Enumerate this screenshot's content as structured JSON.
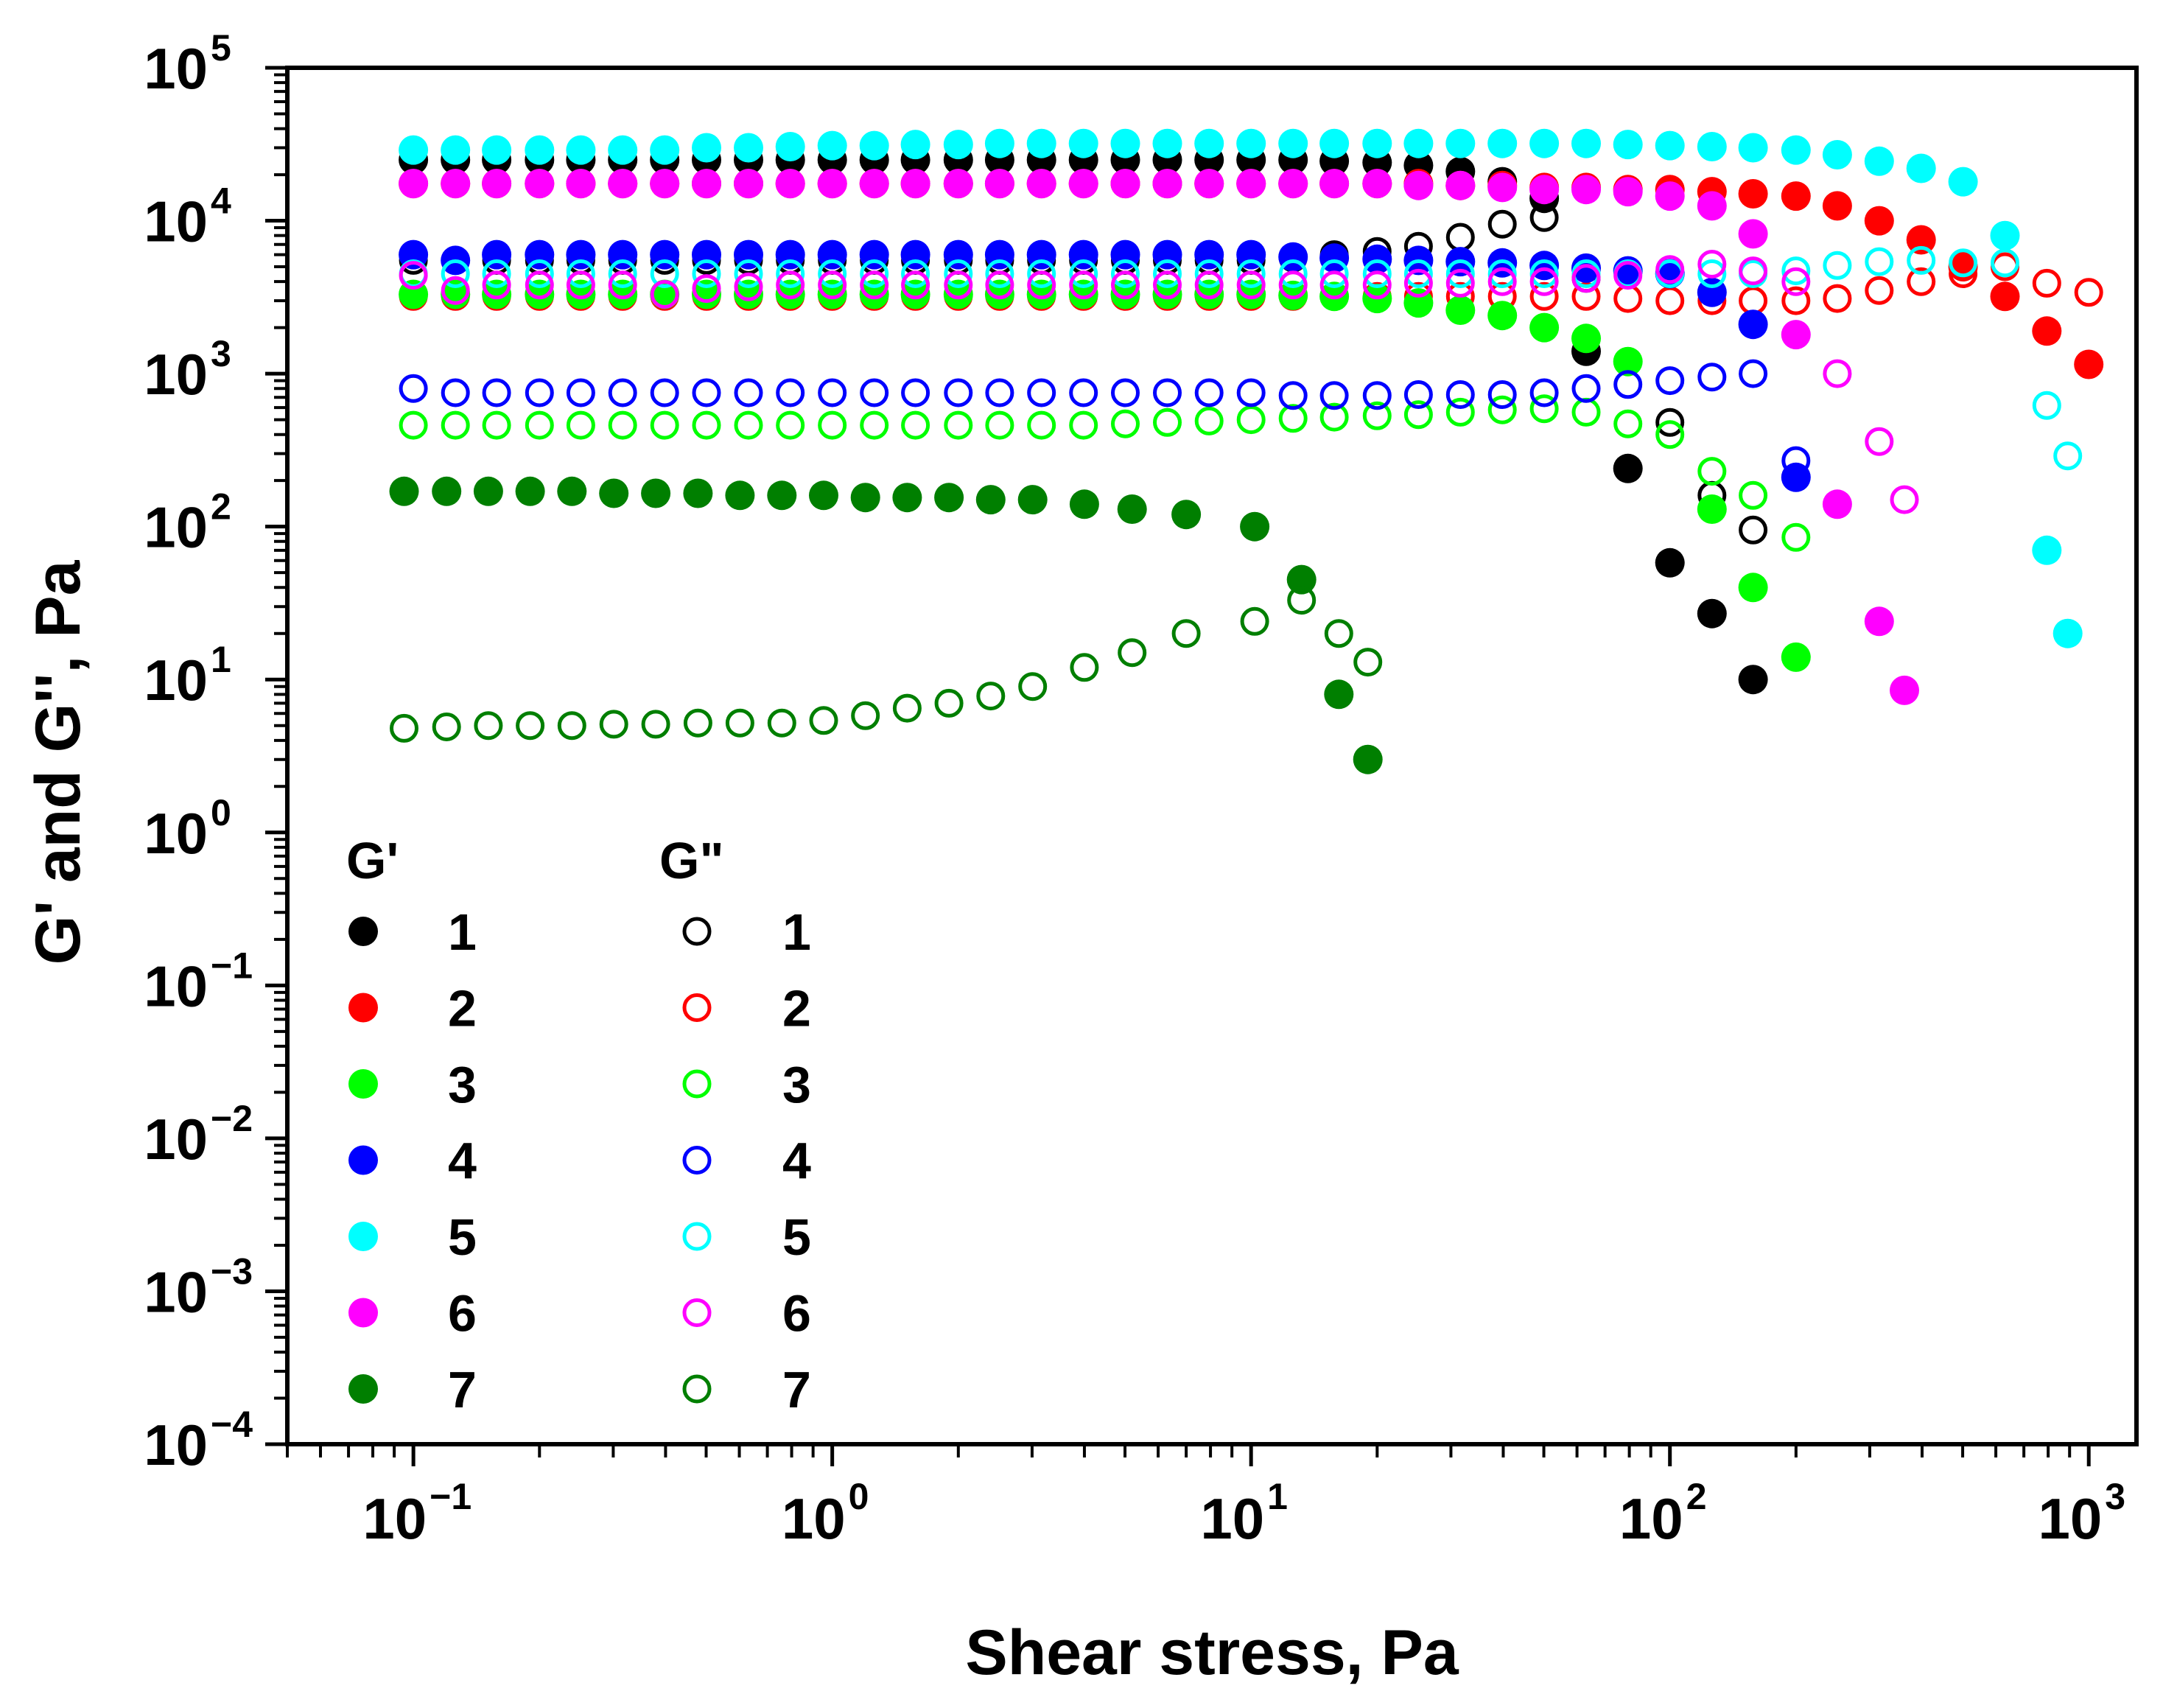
{
  "chart_data": {
    "type": "scatter",
    "title": "",
    "xlabel": "Shear stress, Pa",
    "ylabel": "G' and G'', Pa",
    "xscale": "log",
    "yscale": "log",
    "xlim": [
      0.05,
      1300
    ],
    "ylim": [
      0.0001,
      100000
    ],
    "x_ticks": [
      {
        "base": "10",
        "exp": "−1"
      },
      {
        "base": "10",
        "exp": "0"
      },
      {
        "base": "10",
        "exp": "1"
      },
      {
        "base": "10",
        "exp": "2"
      },
      {
        "base": "10",
        "exp": "3"
      }
    ],
    "y_ticks": [
      {
        "base": "10",
        "exp": "5"
      },
      {
        "base": "10",
        "exp": "4"
      },
      {
        "base": "10",
        "exp": "3"
      },
      {
        "base": "10",
        "exp": "2"
      },
      {
        "base": "10",
        "exp": "1"
      },
      {
        "base": "10",
        "exp": "0"
      },
      {
        "base": "10",
        "exp": "−1"
      },
      {
        "base": "10",
        "exp": "−2"
      },
      {
        "base": "10",
        "exp": "−3"
      },
      {
        "base": "10",
        "exp": "−4"
      }
    ],
    "legend": {
      "placement": "lower-left",
      "g_prime_title": "G'",
      "g_double_prime_title": "G\"",
      "labels": [
        "1",
        "2",
        "3",
        "4",
        "5",
        "6",
        "7"
      ]
    },
    "series": [
      {
        "name": "G' 1",
        "label": "1",
        "modulus": "G'",
        "color": "#000000",
        "filled": true,
        "x": [
          0.1,
          0.126,
          0.158,
          0.2,
          0.251,
          0.316,
          0.398,
          0.501,
          0.631,
          0.794,
          1,
          1.26,
          1.58,
          2,
          2.51,
          3.16,
          3.98,
          5.01,
          6.31,
          7.94,
          10,
          12.6,
          15.8,
          20,
          25.1,
          31.6,
          39.8,
          50.1,
          63.1,
          79.4,
          100,
          126,
          158
        ],
        "y": [
          25000,
          25000,
          25000,
          25000,
          25000,
          25000,
          25000,
          25000,
          25000,
          25000,
          25000,
          25000,
          25000,
          25000,
          25000,
          25000,
          25000,
          25000,
          25000,
          25000,
          25000,
          25000,
          24500,
          24000,
          23000,
          21000,
          18000,
          14000,
          1400,
          240,
          58,
          27,
          10
        ]
      },
      {
        "name": "G'' 1",
        "label": "1",
        "modulus": "G''",
        "color": "#000000",
        "filled": false,
        "x": [
          0.1,
          0.126,
          0.158,
          0.2,
          0.251,
          0.316,
          0.398,
          0.501,
          0.631,
          0.794,
          1,
          1.26,
          1.58,
          2,
          2.51,
          3.16,
          3.98,
          5.01,
          6.31,
          7.94,
          10,
          12.6,
          15.8,
          20,
          25.1,
          31.6,
          39.8,
          50.1,
          63.1,
          79.4,
          100,
          126,
          158
        ],
        "y": [
          5500,
          5500,
          5500,
          5500,
          5500,
          5500,
          5500,
          5500,
          5500,
          5500,
          5500,
          5500,
          5500,
          5500,
          5500,
          5500,
          5500,
          5500,
          5500,
          5500,
          5500,
          5700,
          6000,
          6300,
          6800,
          7800,
          9500,
          10500,
          4200,
          1200,
          480,
          160,
          95
        ]
      },
      {
        "name": "G' 2",
        "label": "2",
        "modulus": "G'",
        "color": "#ff0000",
        "filled": true,
        "x": [
          0.1,
          0.126,
          0.158,
          0.2,
          0.251,
          0.316,
          0.398,
          0.501,
          0.631,
          0.794,
          1,
          1.26,
          1.58,
          2,
          2.51,
          3.16,
          3.98,
          5.01,
          6.31,
          7.94,
          10,
          12.6,
          15.8,
          20,
          25.1,
          31.6,
          39.8,
          50.1,
          63.1,
          79.4,
          100,
          126,
          158,
          200,
          251,
          316,
          398,
          501,
          631,
          794,
          1000
        ],
        "y": [
          17500,
          17500,
          17500,
          17500,
          17500,
          17500,
          17500,
          17500,
          17500,
          17500,
          17500,
          17500,
          17500,
          17500,
          17500,
          17500,
          17500,
          17500,
          17500,
          17500,
          17500,
          17500,
          17500,
          17500,
          17500,
          17000,
          17000,
          16500,
          16500,
          16000,
          16000,
          15500,
          15000,
          14500,
          12500,
          10000,
          7500,
          5000,
          3200,
          1900,
          1150
        ]
      },
      {
        "name": "G'' 2",
        "label": "2",
        "modulus": "G''",
        "color": "#ff0000",
        "filled": false,
        "x": [
          0.1,
          0.126,
          0.158,
          0.2,
          0.251,
          0.316,
          0.398,
          0.501,
          0.631,
          0.794,
          1,
          1.26,
          1.58,
          2,
          2.51,
          3.16,
          3.98,
          5.01,
          6.31,
          7.94,
          10,
          12.6,
          15.8,
          20,
          25.1,
          31.6,
          39.8,
          50.1,
          63.1,
          79.4,
          100,
          126,
          158,
          200,
          251,
          316,
          398,
          501,
          631,
          794,
          1000
        ],
        "y": [
          3200,
          3200,
          3200,
          3200,
          3200,
          3200,
          3200,
          3200,
          3200,
          3200,
          3200,
          3200,
          3200,
          3200,
          3200,
          3200,
          3200,
          3200,
          3200,
          3200,
          3200,
          3200,
          3200,
          3200,
          3200,
          3200,
          3200,
          3200,
          3200,
          3100,
          3000,
          3000,
          3000,
          3000,
          3100,
          3500,
          4000,
          4500,
          5000,
          3900,
          3400
        ]
      },
      {
        "name": "G' 3",
        "label": "3",
        "modulus": "G'",
        "color": "#00ff00",
        "filled": true,
        "x": [
          0.1,
          0.126,
          0.158,
          0.2,
          0.251,
          0.316,
          0.398,
          0.501,
          0.631,
          0.794,
          1,
          1.26,
          1.58,
          2,
          2.51,
          3.16,
          3.98,
          5.01,
          6.31,
          7.94,
          10,
          12.6,
          15.8,
          20,
          25.1,
          31.6,
          39.8,
          50.1,
          63.1,
          79.4,
          126,
          158,
          200
        ],
        "y": [
          3300,
          3300,
          3300,
          3300,
          3300,
          3300,
          3300,
          3300,
          3300,
          3300,
          3300,
          3300,
          3300,
          3300,
          3300,
          3300,
          3300,
          3300,
          3300,
          3300,
          3300,
          3250,
          3200,
          3100,
          2900,
          2600,
          2400,
          2000,
          1700,
          1200,
          130,
          40,
          14
        ]
      },
      {
        "name": "G'' 3",
        "label": "3",
        "modulus": "G''",
        "color": "#00ff00",
        "filled": false,
        "x": [
          0.1,
          0.126,
          0.158,
          0.2,
          0.251,
          0.316,
          0.398,
          0.501,
          0.631,
          0.794,
          1,
          1.26,
          1.58,
          2,
          2.51,
          3.16,
          3.98,
          5.01,
          6.31,
          7.94,
          10,
          12.6,
          15.8,
          20,
          25.1,
          31.6,
          39.8,
          50.1,
          63.1,
          79.4,
          100,
          126,
          158,
          200
        ],
        "y": [
          460,
          460,
          460,
          460,
          460,
          460,
          460,
          460,
          460,
          460,
          460,
          460,
          460,
          460,
          460,
          460,
          460,
          470,
          480,
          490,
          500,
          510,
          520,
          530,
          540,
          560,
          580,
          590,
          560,
          470,
          400,
          230,
          160,
          85
        ]
      },
      {
        "name": "G' 4",
        "label": "4",
        "modulus": "G'",
        "color": "#0000ff",
        "filled": true,
        "x": [
          0.1,
          0.126,
          0.158,
          0.2,
          0.251,
          0.316,
          0.398,
          0.501,
          0.631,
          0.794,
          1,
          1.26,
          1.58,
          2,
          2.51,
          3.16,
          3.98,
          5.01,
          6.31,
          7.94,
          10,
          12.6,
          15.8,
          20,
          25.1,
          31.6,
          39.8,
          50.1,
          63.1,
          79.4,
          100,
          126,
          158,
          200
        ],
        "y": [
          6000,
          5500,
          6000,
          6000,
          6000,
          6000,
          6000,
          6000,
          6000,
          6000,
          6000,
          6000,
          6000,
          6000,
          6000,
          6000,
          6000,
          6000,
          6000,
          6000,
          6000,
          5800,
          5700,
          5600,
          5500,
          5400,
          5300,
          5100,
          4900,
          4700,
          4500,
          3400,
          2100,
          210
        ]
      },
      {
        "name": "G'' 4",
        "label": "4",
        "modulus": "G''",
        "color": "#0000ff",
        "filled": false,
        "x": [
          0.1,
          0.126,
          0.158,
          0.2,
          0.251,
          0.316,
          0.398,
          0.501,
          0.631,
          0.794,
          1,
          1.26,
          1.58,
          2,
          2.51,
          3.16,
          3.98,
          5.01,
          6.31,
          7.94,
          10,
          12.6,
          15.8,
          20,
          25.1,
          31.6,
          39.8,
          50.1,
          63.1,
          79.4,
          100,
          126,
          158,
          200
        ],
        "y": [
          800,
          750,
          750,
          750,
          750,
          750,
          750,
          750,
          750,
          750,
          750,
          750,
          750,
          750,
          750,
          750,
          750,
          750,
          750,
          750,
          750,
          720,
          720,
          720,
          730,
          730,
          730,
          750,
          800,
          850,
          900,
          950,
          1000,
          270
        ]
      },
      {
        "name": "G' 5",
        "label": "5",
        "modulus": "G'",
        "color": "#00ffff",
        "filled": true,
        "x": [
          0.1,
          0.126,
          0.158,
          0.2,
          0.251,
          0.316,
          0.398,
          0.501,
          0.631,
          0.794,
          1,
          1.26,
          1.58,
          2,
          2.51,
          3.16,
          3.98,
          5.01,
          6.31,
          7.94,
          10,
          12.6,
          15.8,
          20,
          25.1,
          31.6,
          39.8,
          50.1,
          63.1,
          79.4,
          100,
          126,
          158,
          200,
          251,
          316,
          398,
          501,
          631,
          794,
          891
        ],
        "y": [
          29000,
          29000,
          29000,
          29000,
          29000,
          29000,
          29000,
          30000,
          30000,
          30500,
          31000,
          31000,
          31500,
          31500,
          32000,
          32000,
          32000,
          32000,
          32000,
          32000,
          32000,
          32000,
          32000,
          32000,
          32000,
          32000,
          32000,
          32000,
          32000,
          31500,
          31000,
          30500,
          30000,
          29000,
          27000,
          24500,
          22000,
          18000,
          8000,
          70,
          20
        ]
      },
      {
        "name": "G'' 5",
        "label": "5",
        "modulus": "G''",
        "color": "#00ffff",
        "filled": false,
        "x": [
          0.1,
          0.126,
          0.158,
          0.2,
          0.251,
          0.316,
          0.398,
          0.501,
          0.631,
          0.794,
          1,
          1.26,
          1.58,
          2,
          2.51,
          3.16,
          3.98,
          5.01,
          6.31,
          7.94,
          10,
          12.6,
          15.8,
          20,
          25.1,
          31.6,
          39.8,
          50.1,
          63.1,
          79.4,
          100,
          126,
          158,
          200,
          251,
          316,
          398,
          501,
          631,
          794,
          891
        ],
        "y": [
          4500,
          4500,
          4500,
          4500,
          4500,
          4500,
          4500,
          4500,
          4500,
          4500,
          4500,
          4500,
          4500,
          4500,
          4500,
          4500,
          4500,
          4500,
          4500,
          4500,
          4500,
          4500,
          4500,
          4500,
          4500,
          4500,
          4500,
          4500,
          4500,
          4500,
          4500,
          4500,
          4500,
          4700,
          5100,
          5400,
          5500,
          5300,
          5300,
          620,
          290
        ]
      },
      {
        "name": "G' 6",
        "label": "6",
        "modulus": "G'",
        "color": "#ff00ff",
        "filled": true,
        "x": [
          0.1,
          0.126,
          0.158,
          0.2,
          0.251,
          0.316,
          0.398,
          0.501,
          0.631,
          0.794,
          1,
          1.26,
          1.58,
          2,
          2.51,
          3.16,
          3.98,
          5.01,
          6.31,
          7.94,
          10,
          12.6,
          15.8,
          20,
          25.1,
          31.6,
          39.8,
          50.1,
          63.1,
          79.4,
          100,
          126,
          158,
          200,
          251,
          316,
          363
        ],
        "y": [
          17500,
          17500,
          17500,
          17500,
          17500,
          17500,
          17500,
          17500,
          17500,
          17500,
          17500,
          17500,
          17500,
          17500,
          17500,
          17500,
          17500,
          17500,
          17500,
          17500,
          17500,
          17500,
          17500,
          17500,
          17000,
          17000,
          16500,
          16000,
          16000,
          15500,
          14500,
          12500,
          8200,
          1800,
          140,
          24,
          8.5
        ]
      },
      {
        "name": "G'' 6",
        "label": "6",
        "modulus": "G''",
        "color": "#ff00ff",
        "filled": false,
        "x": [
          0.1,
          0.126,
          0.158,
          0.2,
          0.251,
          0.316,
          0.398,
          0.501,
          0.631,
          0.794,
          1,
          1.26,
          1.58,
          2,
          2.51,
          3.16,
          3.98,
          5.01,
          6.31,
          7.94,
          10,
          12.6,
          15.8,
          20,
          25.1,
          31.6,
          39.8,
          50.1,
          63.1,
          79.4,
          100,
          126,
          158,
          200,
          251,
          316,
          363
        ],
        "y": [
          4400,
          3500,
          3800,
          3800,
          3800,
          3800,
          3300,
          3600,
          3700,
          3800,
          3800,
          3800,
          3800,
          3800,
          3800,
          3800,
          3800,
          3800,
          3800,
          3800,
          3800,
          3800,
          3800,
          3800,
          3900,
          3900,
          4000,
          4000,
          4200,
          4400,
          4800,
          5200,
          4700,
          4000,
          1000,
          360,
          150
        ]
      },
      {
        "name": "G' 7",
        "label": "7",
        "modulus": "G'",
        "color": "#007f00",
        "filled": true,
        "x": [
          0.095,
          0.12,
          0.151,
          0.19,
          0.239,
          0.301,
          0.379,
          0.478,
          0.602,
          0.758,
          0.954,
          1.2,
          1.51,
          1.9,
          2.39,
          3.01,
          4,
          5.2,
          7,
          10.2,
          13.2,
          16.2,
          19
        ],
        "y": [
          170,
          170,
          170,
          170,
          170,
          165,
          165,
          165,
          160,
          160,
          160,
          155,
          155,
          155,
          150,
          150,
          140,
          130,
          120,
          100,
          45,
          8,
          3
        ]
      },
      {
        "name": "G'' 7",
        "label": "7",
        "modulus": "G''",
        "color": "#007f00",
        "filled": false,
        "x": [
          0.095,
          0.12,
          0.151,
          0.19,
          0.239,
          0.301,
          0.379,
          0.478,
          0.602,
          0.758,
          0.954,
          1.2,
          1.51,
          1.9,
          2.39,
          3.01,
          4,
          5.2,
          7,
          10.2,
          13.2,
          16.2,
          19
        ],
        "y": [
          4.8,
          4.9,
          5,
          5,
          5,
          5.1,
          5.1,
          5.2,
          5.2,
          5.2,
          5.4,
          5.8,
          6.5,
          7,
          7.8,
          9,
          12,
          15,
          20,
          24,
          33,
          20,
          13
        ]
      }
    ]
  }
}
